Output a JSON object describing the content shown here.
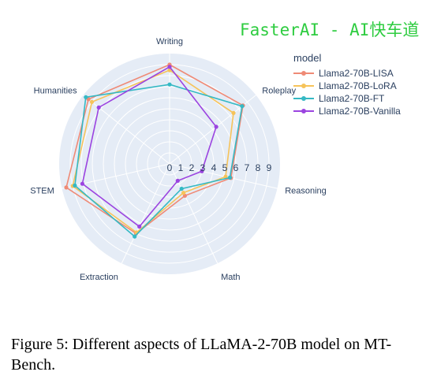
{
  "watermark": "FasterAI - AI快车道",
  "caption": "Figure 5: Different aspects of LLaMA-2-70B model on MT-Bench.",
  "chart_data": {
    "type": "radar",
    "categories": [
      "Writing",
      "Roleplay",
      "Reasoning",
      "Math",
      "Extraction",
      "STEM",
      "Humanities"
    ],
    "radial_ticks": [
      "0",
      "1",
      "2",
      "3",
      "4",
      "5",
      "6",
      "7",
      "8",
      "9"
    ],
    "rrange": [
      0,
      10
    ],
    "legend_title": "model",
    "legend_position": "top-right",
    "grid": true,
    "background_color": "#e5ecf6",
    "series": [
      {
        "name": "Llama2-70B-LISA",
        "color": "#ef8a76",
        "values": [
          9.0,
          8.5,
          5.7,
          3.2,
          7.0,
          9.6,
          9.4
        ]
      },
      {
        "name": "Llama2-70B-LoRA",
        "color": "#f6c35a",
        "values": [
          8.5,
          7.4,
          5.2,
          2.9,
          6.9,
          9.0,
          9.0
        ]
      },
      {
        "name": "Llama2-70B-FT",
        "color": "#35b9c4",
        "values": [
          7.2,
          8.4,
          5.6,
          2.5,
          7.3,
          8.8,
          9.7
        ]
      },
      {
        "name": "Llama2-70B-Vanilla",
        "color": "#9b44e0",
        "values": [
          8.8,
          5.4,
          3.0,
          1.7,
          6.3,
          8.1,
          8.2
        ]
      }
    ]
  }
}
